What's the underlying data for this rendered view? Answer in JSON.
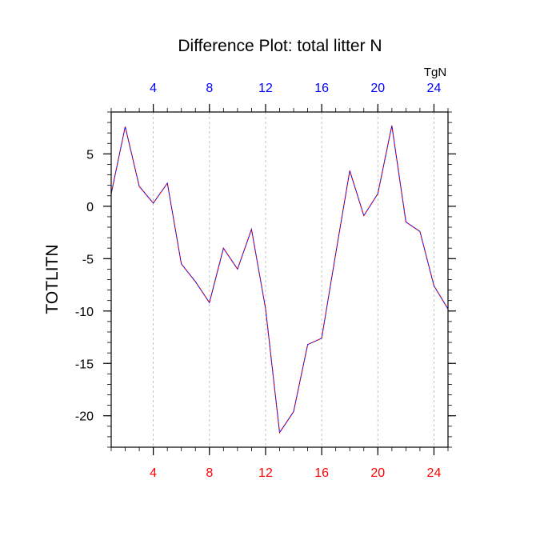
{
  "chart_data": {
    "type": "line",
    "title": "Difference Plot: total litter N",
    "ylabel": "TOTLITN",
    "top_axis_label": "TgN",
    "xlim": [
      1,
      25
    ],
    "ylim": [
      -23,
      9
    ],
    "x_ticks": [
      4,
      8,
      12,
      16,
      20,
      24
    ],
    "x_tick_labels": [
      "4",
      "8",
      "12",
      "16",
      "20",
      "24"
    ],
    "y_ticks": [
      5,
      0,
      -5,
      -10,
      -15,
      -20
    ],
    "y_tick_labels": [
      "5",
      "0",
      "-5",
      "-10",
      "-15",
      "-20"
    ],
    "grid": "vertical dashed at x ticks",
    "colors": {
      "line_primary": "#0000ff",
      "line_overlay": "#ff0000",
      "top_tick_labels": "#0000ff",
      "bottom_tick_labels": "#ff0000",
      "grid": "#b4b4b4",
      "axes": "#000000"
    },
    "series": [
      {
        "x": [
          1,
          2,
          3,
          4,
          5,
          6,
          7,
          8,
          9,
          10,
          11,
          12,
          13,
          14,
          15,
          16,
          17,
          18,
          19,
          20,
          21,
          22,
          23,
          24,
          25
        ],
        "values": [
          1.2,
          7.6,
          1.9,
          0.3,
          2.2,
          -5.5,
          -7.2,
          -9.2,
          -4.0,
          -6.0,
          -2.2,
          -9.8,
          -21.6,
          -19.6,
          -13.2,
          -12.6,
          -4.5,
          3.4,
          -0.9,
          1.2,
          7.7,
          -1.5,
          -2.4,
          -7.6,
          -9.8
        ]
      }
    ]
  }
}
